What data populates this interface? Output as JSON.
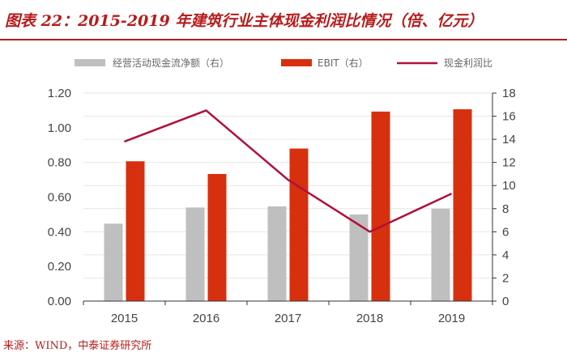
{
  "title": "图表 22：2015-2019 年建筑行业主体现金利润比情况（倍、亿元）",
  "source": "来源：WIND，中泰证券研究所",
  "chart_data": {
    "type": "bar+line",
    "categories": [
      "2015",
      "2016",
      "2017",
      "2018",
      "2019"
    ],
    "series": [
      {
        "name": "经营活动现金流净额（右）",
        "type": "bar",
        "axis": "right",
        "color": "#bfbfbf",
        "values": [
          6.7,
          8.1,
          8.2,
          7.5,
          8.0
        ]
      },
      {
        "name": "EBIT（右）",
        "type": "bar",
        "axis": "right",
        "color": "#d7300f",
        "values": [
          12.1,
          11.0,
          13.2,
          16.4,
          16.6
        ]
      },
      {
        "name": "现金利润比",
        "type": "line",
        "axis": "left",
        "color": "#b0103a",
        "values": [
          0.92,
          1.1,
          0.7,
          0.4,
          0.62
        ]
      }
    ],
    "y_left": {
      "ticks": [
        "0.00",
        "0.20",
        "0.40",
        "0.60",
        "0.80",
        "1.00",
        "1.20"
      ],
      "min": 0,
      "max": 1.2
    },
    "y_right": {
      "ticks": [
        "0",
        "2",
        "4",
        "6",
        "8",
        "10",
        "12",
        "14",
        "16",
        "18"
      ],
      "min": 0,
      "max": 18
    },
    "gridlines": true,
    "legend": "top"
  }
}
